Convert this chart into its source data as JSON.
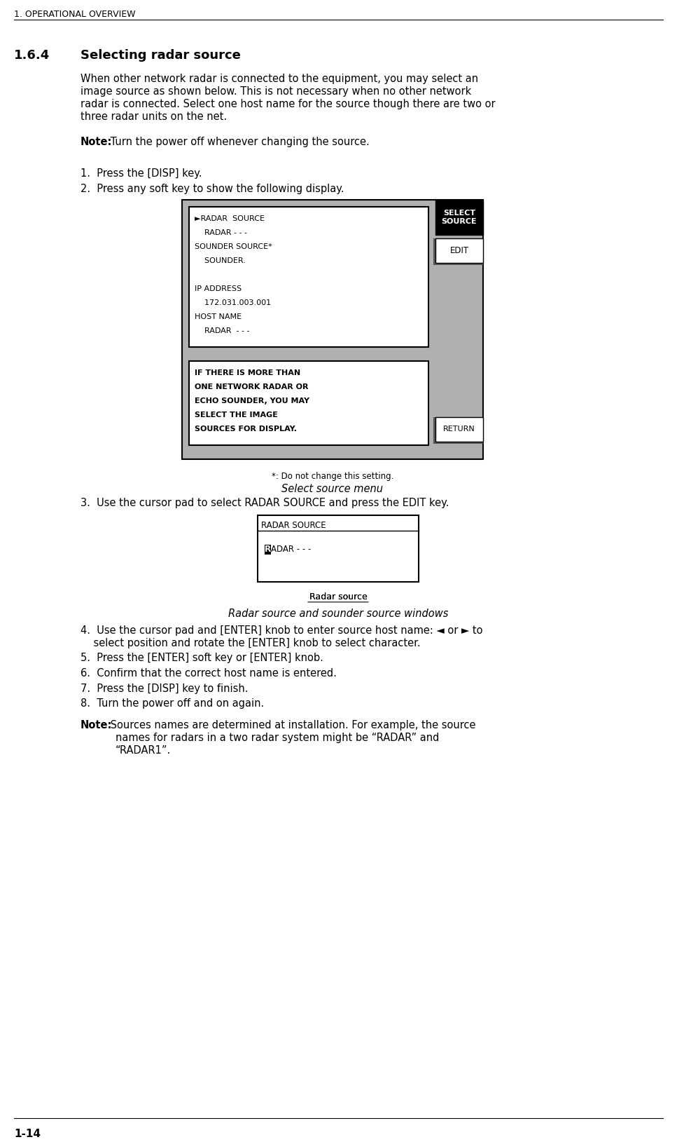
{
  "bg_color": "#ffffff",
  "header_text": "1. OPERATIONAL OVERVIEW",
  "section_num": "1.6.4",
  "section_title": "Selecting radar source",
  "para1": "When other network radar is connected to the equipment, you may select an image source as shown below. This is not necessary when no other network radar is connected. Select one host name for the source though there are two or three radar units on the net.",
  "note1_bold": "Note:",
  "note1_text": " Turn the power off whenever changing the source.",
  "step1": "1.  Press the [DISP] key.",
  "step2": "2.  Press any soft key to show the following display.",
  "screen1_lines": [
    "►RADAR  SOURCE",
    "    RADAR - - -",
    "SOUNDER SOURCE*",
    "    SOUNDER.",
    "",
    "IP ADDRESS",
    "    172.031.003.001",
    "HOST NAME",
    "    RADAR  - - -"
  ],
  "select_source_label": "SELECT\nSOURCE",
  "edit_label": "EDIT",
  "return_label": "RETURN",
  "help_text": "IF THERE IS MORE THAN\nONE NETWORK RADAR OR\nECHO SOUNDER, YOU MAY\nSELECT THE IMAGE\nSOURCES FOR DISPLAY.",
  "footnote": "*: Do not change this setting.",
  "caption1": "Select source menu",
  "step3": "3.  Use the cursor pad to select RADAR SOURCE and press the EDIT key.",
  "screen2_title": "RADAR SOURCE",
  "screen2_content_prefix": "R",
  "screen2_content_rest": "ADAR - - -",
  "caption2": "Radar source",
  "caption3": "Radar source and sounder source windows",
  "step4": "4.  Use the cursor pad and [ENTER] knob to enter source host name: ◄ or ► to\n    select position and rotate the [ENTER] knob to select character.",
  "step5": "5.  Press the [ENTER] soft key or [ENTER] knob.",
  "step6": "6.  Confirm that the correct host name is entered.",
  "step7": "7.  Press the [DISP] key to finish.",
  "step8": "8.  Turn the power off and on again.",
  "note2_bold": "Note:",
  "note2_text": " Sources names are determined at installation. For example, the source\n        names for radars in a two radar system might be “RADAR” and\n        “RADAR1”.",
  "footer": "1-14"
}
